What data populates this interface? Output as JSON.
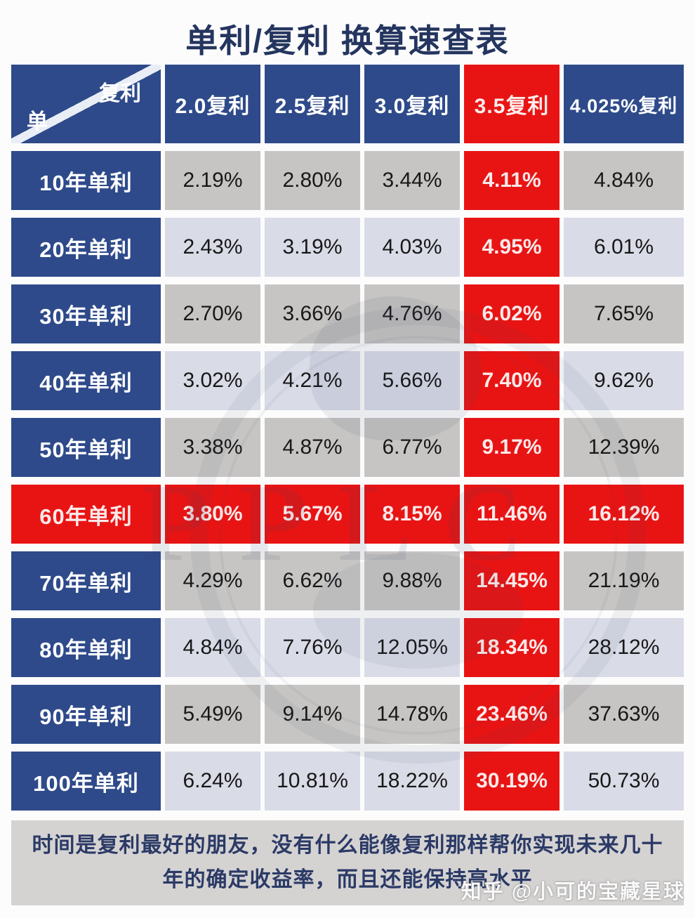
{
  "title": "单利/复利 换算速查表",
  "chart_data": {
    "type": "table",
    "title": "单利/复利 换算速查表",
    "corner_header": {
      "top_right": "复利",
      "bottom_left": "单"
    },
    "columns": [
      "2.0复利",
      "2.5复利",
      "3.0复利",
      "3.5复利",
      "4.025%复利"
    ],
    "highlighted_column_index": 3,
    "highlighted_row_label": "60年单利",
    "rows": [
      {
        "label": "10年单利",
        "values": [
          "2.19%",
          "2.80%",
          "3.44%",
          "4.11%",
          "4.84%"
        ]
      },
      {
        "label": "20年单利",
        "values": [
          "2.43%",
          "3.19%",
          "4.03%",
          "4.95%",
          "6.01%"
        ]
      },
      {
        "label": "30年单利",
        "values": [
          "2.70%",
          "3.66%",
          "4.76%",
          "6.02%",
          "7.65%"
        ]
      },
      {
        "label": "40年单利",
        "values": [
          "3.02%",
          "4.21%",
          "5.66%",
          "7.40%",
          "9.62%"
        ]
      },
      {
        "label": "50年单利",
        "values": [
          "3.38%",
          "4.87%",
          "6.77%",
          "9.17%",
          "12.39%"
        ]
      },
      {
        "label": "60年单利",
        "values": [
          "3.80%",
          "5.67%",
          "8.15%",
          "11.46%",
          "16.12%"
        ]
      },
      {
        "label": "70年单利",
        "values": [
          "4.29%",
          "6.62%",
          "9.88%",
          "14.45%",
          "21.19%"
        ]
      },
      {
        "label": "80年单利",
        "values": [
          "4.84%",
          "7.76%",
          "12.05%",
          "18.34%",
          "28.12%"
        ]
      },
      {
        "label": "90年单利",
        "values": [
          "5.49%",
          "9.14%",
          "14.78%",
          "23.46%",
          "37.63%"
        ]
      },
      {
        "label": "100年单利",
        "values": [
          "6.24%",
          "10.81%",
          "18.22%",
          "30.19%",
          "50.73%"
        ]
      }
    ]
  },
  "footer": {
    "text": "时间是复利最好的朋友，没有什么能像复利那样帮你实现未来几十年的确定收益率，而且还能保持高水平"
  },
  "watermark": {
    "logo_text": "PPLC",
    "credit": "知乎 @小可的宝藏星球"
  },
  "colors": {
    "header_blue": "#2e4a8a",
    "highlight_red": "#e81414",
    "row_gray": "#c7c5c3",
    "row_lavender": "#d9dbe7",
    "title_navy": "#24355f",
    "footer_bg": "#d5d3d2",
    "footer_text": "#2b3a66"
  }
}
